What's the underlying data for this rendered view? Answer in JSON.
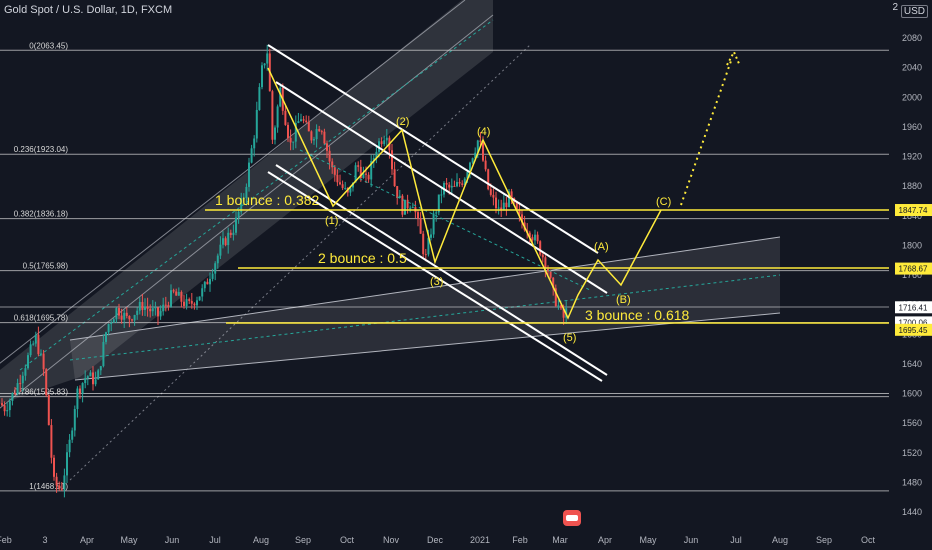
{
  "header": {
    "symbol_title": "Gold Spot / U.S. Dollar, 1D, FXCM",
    "currency": "USD",
    "scale_top": "2"
  },
  "colors": {
    "background": "#131722",
    "up": "#26a69a",
    "down": "#ef5350",
    "fib": "#d9d9d9",
    "channel": "#ffffff",
    "annotation": "#ffeb3b",
    "axis_text": "#b2b5be"
  },
  "chart_data": {
    "type": "candlestick",
    "title": "Gold Spot / U.S. Dollar, 1D, FXCM",
    "y_axis": {
      "side": "right",
      "ticks": [
        2080,
        2040,
        2000,
        1960,
        1920,
        1880,
        1840,
        1800,
        1760,
        1720,
        1680,
        1640,
        1600,
        1560,
        1520,
        1480,
        1440
      ]
    },
    "x_axis": {
      "ticks": [
        "Feb",
        "3",
        "Apr",
        "May",
        "Jun",
        "Jul",
        "Aug",
        "Sep",
        "Oct",
        "Nov",
        "Dec",
        "2021",
        "Feb",
        "Mar",
        "Apr",
        "May",
        "Jun",
        "Jul",
        "Aug",
        "Sep",
        "Oct"
      ]
    },
    "price_labels": [
      {
        "text": "1847.74",
        "value": 1847.74,
        "style": "yellow"
      },
      {
        "text": "1768.67",
        "value": 1768.67,
        "style": "yellow"
      },
      {
        "text": "1716.41",
        "value": 1716.41,
        "style": "white"
      },
      {
        "text": "1700.06",
        "value": 1700.06,
        "style": "white"
      },
      {
        "text": "1695.45",
        "value": 1695.45,
        "style": "yellow"
      }
    ],
    "fib_levels": [
      {
        "label": "0(2063.45)",
        "value": 2063.45
      },
      {
        "label": "0.236(1923.04)",
        "value": 1923.04
      },
      {
        "label": "0.382(1836.18)",
        "value": 1836.18
      },
      {
        "label": "0.5(1765.98)",
        "value": 1765.98
      },
      {
        "label": "0.618(1695.78)",
        "value": 1695.78
      },
      {
        "label": "0.786(1595.83)",
        "value": 1595.83
      },
      {
        "label": "1(1468.51)",
        "value": 1468.51
      }
    ],
    "annotations": {
      "bounce1": "1 bounce : 0.382",
      "bounce2": "2 bounce : 0.5",
      "bounce3": "3 bounce : 0.618",
      "wave_labels": [
        "(1)",
        "(2)",
        "(3)",
        "(4)",
        "(5)",
        "(A)",
        "(B)",
        "(C)"
      ]
    },
    "price_path": [
      [
        2020.08,
        1587
      ],
      [
        2020.09,
        1580
      ],
      [
        2020.11,
        1605
      ],
      [
        2020.13,
        1640
      ],
      [
        2020.15,
        1675
      ],
      [
        2020.165,
        1635
      ],
      [
        2020.175,
        1565
      ],
      [
        2020.185,
        1480
      ],
      [
        2020.2,
        1470
      ],
      [
        2020.215,
        1525
      ],
      [
        2020.23,
        1600
      ],
      [
        2020.25,
        1625
      ],
      [
        2020.27,
        1615
      ],
      [
        2020.29,
        1690
      ],
      [
        2020.31,
        1715
      ],
      [
        2020.33,
        1700
      ],
      [
        2020.36,
        1720
      ],
      [
        2020.39,
        1705
      ],
      [
        2020.42,
        1735
      ],
      [
        2020.45,
        1718
      ],
      [
        2020.48,
        1740
      ],
      [
        2020.5,
        1775
      ],
      [
        2020.52,
        1805
      ],
      [
        2020.54,
        1825
      ],
      [
        2020.56,
        1870
      ],
      [
        2020.58,
        1955
      ],
      [
        2020.595,
        2040
      ],
      [
        2020.605,
        2063
      ],
      [
        2020.615,
        1940
      ],
      [
        2020.63,
        2010
      ],
      [
        2020.65,
        1935
      ],
      [
        2020.67,
        1975
      ],
      [
        2020.69,
        1945
      ],
      [
        2020.71,
        1965
      ],
      [
        2020.73,
        1905
      ],
      [
        2020.75,
        1880
      ],
      [
        2020.765,
        1865
      ],
      [
        2020.78,
        1910
      ],
      [
        2020.8,
        1885
      ],
      [
        2020.82,
        1935
      ],
      [
        2020.84,
        1955
      ],
      [
        2020.855,
        1880
      ],
      [
        2020.87,
        1850
      ],
      [
        2020.89,
        1860
      ],
      [
        2020.905,
        1815
      ],
      [
        2020.915,
        1780
      ],
      [
        2020.93,
        1835
      ],
      [
        2020.95,
        1880
      ],
      [
        2020.97,
        1875
      ],
      [
        2020.99,
        1890
      ],
      [
        2021.0,
        1910
      ],
      [
        2021.02,
        1945
      ],
      [
        2021.04,
        1870
      ],
      [
        2021.06,
        1845
      ],
      [
        2021.08,
        1865
      ],
      [
        2021.1,
        1835
      ],
      [
        2021.12,
        1820
      ],
      [
        2021.14,
        1795
      ],
      [
        2021.155,
        1770
      ],
      [
        2021.165,
        1735
      ],
      [
        2021.175,
        1720
      ],
      [
        2021.185,
        1700
      ],
      [
        2021.195,
        1716
      ]
    ]
  }
}
